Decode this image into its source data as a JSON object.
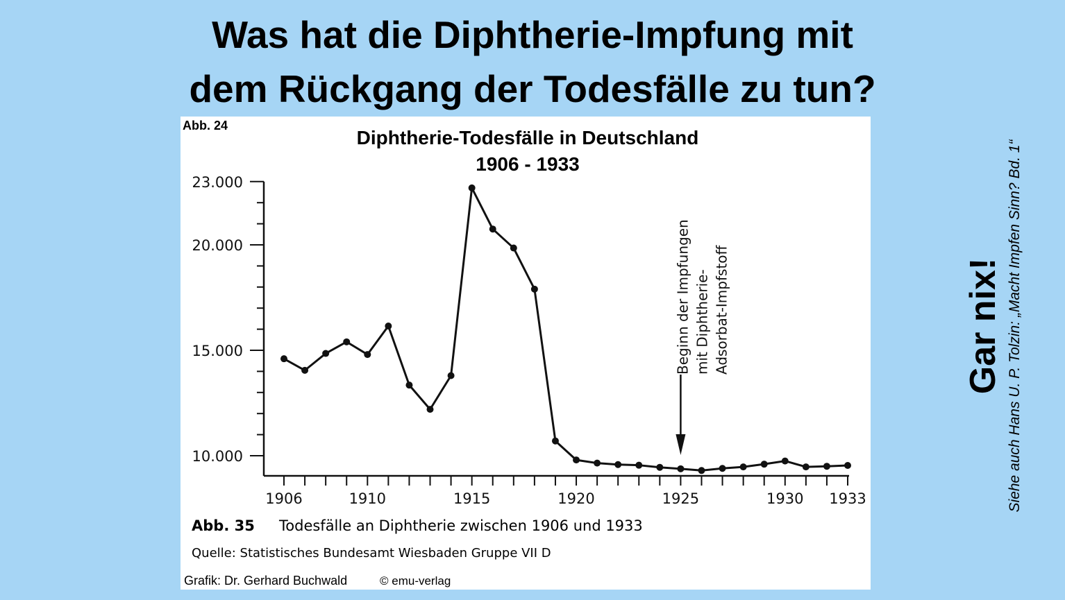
{
  "slide": {
    "title_line1": "Was hat die Diphtherie-Impfung mit",
    "title_line2": "dem Rückgang der Todesfälle zu tun?",
    "side_answer": "Gar nix!",
    "side_reference": "Siehe auch Hans U. P. Tolzin: „Macht Impfen Sinn? Bd. 1“",
    "background_color": "#a6d5f5"
  },
  "figure": {
    "label_top": "Abb. 24",
    "caption_label": "Abb. 35",
    "caption_text": "Todesfälle an Diphtherie zwischen 1906 und 1933",
    "source": "Quelle: Statistisches Bundesamt Wiesbaden Gruppe VII D",
    "credit": "Grafik: Dr. Gerhard Buchwald",
    "copyright": "© emu-verlag"
  },
  "chart_data": {
    "type": "line",
    "title": "Diphtherie-Todesfälle in Deutschland",
    "subtitle": "1906 - 1933",
    "xlabel": "",
    "ylabel": "",
    "ylim": [
      9000,
      23000
    ],
    "yticks": [
      10000,
      15000,
      20000,
      23000
    ],
    "ytick_labels": [
      "10.000",
      "15.000",
      "20.000",
      "23.000"
    ],
    "xticks": [
      1906,
      1910,
      1915,
      1920,
      1925,
      1930,
      1933
    ],
    "xtick_labels": [
      "1906",
      "1910",
      "1915",
      "1920",
      "1925",
      "1930",
      "1933"
    ],
    "x": [
      1906,
      1907,
      1908,
      1909,
      1910,
      1911,
      1912,
      1913,
      1914,
      1915,
      1916,
      1917,
      1918,
      1919,
      1920,
      1921,
      1922,
      1923,
      1924,
      1925,
      1926,
      1927,
      1928,
      1929,
      1930,
      1931,
      1932,
      1933
    ],
    "series": [
      {
        "name": "Diphtherie-Todesfälle",
        "values": [
          14600,
          14050,
          14850,
          15400,
          14800,
          16150,
          13350,
          12200,
          13800,
          22700,
          20750,
          19850,
          17900,
          10700,
          9800,
          9650,
          9580,
          9550,
          9450,
          9380,
          9300,
          9400,
          9470,
          9600,
          9750,
          9470,
          9500,
          9540
        ]
      }
    ],
    "annotation": {
      "x": 1925,
      "lines": [
        "Beginn der Impfungen",
        "mit Diphtherie-",
        "Adsorbat-Impfstoff"
      ]
    },
    "grid": false
  }
}
